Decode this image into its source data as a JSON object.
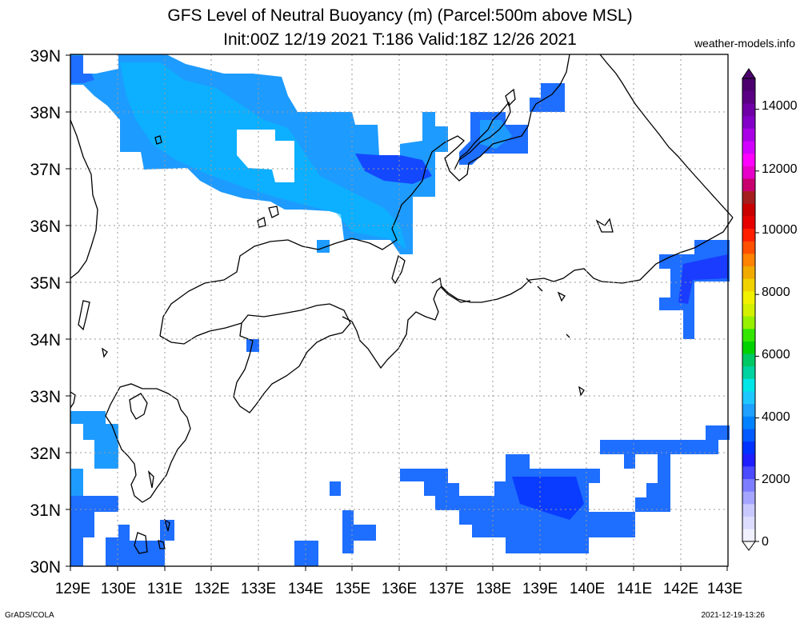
{
  "header": {
    "title_line1": "GFS Level of Neutral Buoyancy (m) (Parcel:500m above MSL)",
    "title_line2": "Init:00Z 12/19 2021 T:186 Valid:18Z 12/26 2021",
    "site": "weather-models.info"
  },
  "footer": {
    "left": "GrADS/COLA",
    "right": "2021-12-19-13:26"
  },
  "map": {
    "lat_labels": [
      "39N",
      "38N",
      "37N",
      "36N",
      "35N",
      "34N",
      "33N",
      "32N",
      "31N",
      "30N"
    ],
    "lon_labels": [
      "129E",
      "130E",
      "131E",
      "132E",
      "133E",
      "134E",
      "135E",
      "136E",
      "137E",
      "138E",
      "139E",
      "140E",
      "141E",
      "142E",
      "143E"
    ]
  },
  "colorbar": {
    "labels": [
      "14000",
      "12000",
      "10000",
      "8000",
      "6000",
      "4000",
      "2000",
      "0"
    ],
    "colors": [
      "#f0f0ff",
      "#dcdcff",
      "#c8c8ff",
      "#a5a5ff",
      "#7d7dff",
      "#4b4bff",
      "#1e1eff",
      "#0032ff",
      "#005aff",
      "#0082ff",
      "#1ea0ff",
      "#1ec8ff",
      "#00e6e6",
      "#00d2a0",
      "#00c864",
      "#00d200",
      "#32e600",
      "#96f000",
      "#d2f000",
      "#f0f000",
      "#f0d200",
      "#f0aa00",
      "#ff8200",
      "#ff5000",
      "#ff1e00",
      "#e60000",
      "#c80000",
      "#a51e1e",
      "#c8006e",
      "#e600c8",
      "#ff00ff",
      "#d200ff",
      "#aa00e6",
      "#8200c8",
      "#6e00a5",
      "#5a0082",
      "#4b006e"
    ]
  }
}
